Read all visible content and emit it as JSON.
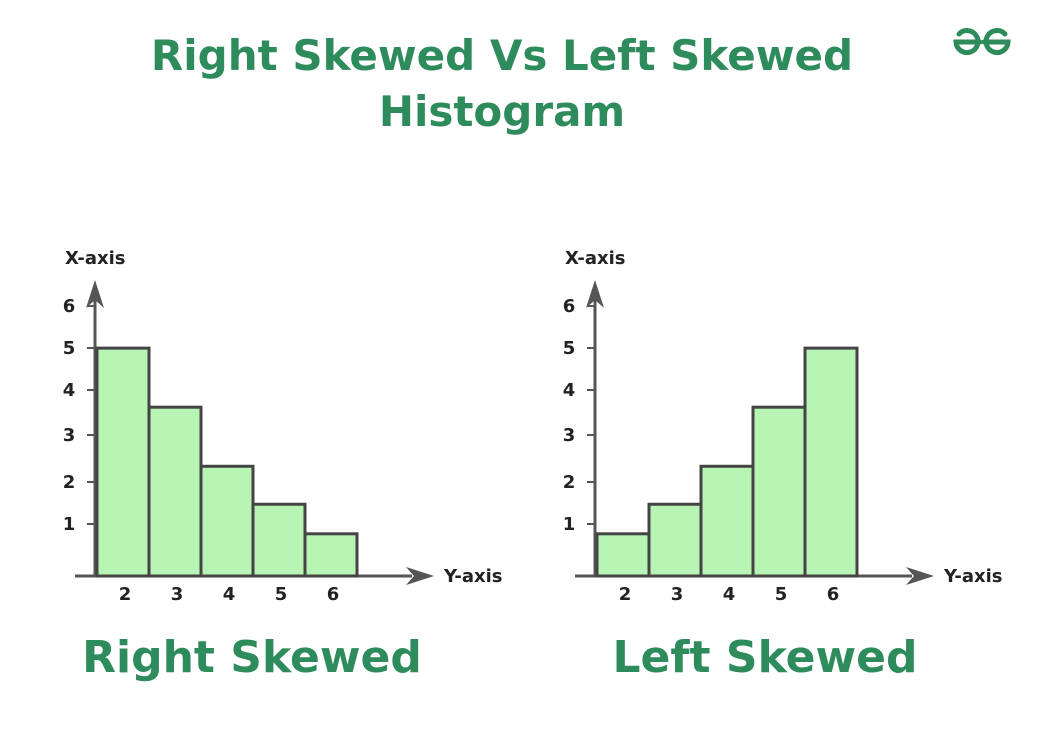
{
  "title": {
    "line1": "Right Skewed Vs Left Skewed",
    "line2": "Histogram"
  },
  "logo": {
    "icon": "gfg-logo-icon",
    "color": "#2e8b5c"
  },
  "colors": {
    "bar_fill": "#b8f5b4",
    "bar_stroke": "#444444",
    "axis": "#555555",
    "accent": "#2e8b5c"
  },
  "chart_data": [
    {
      "type": "bar",
      "title": "Right Skewed",
      "xlabel": "Y-axis",
      "ylabel": "X-axis",
      "categories": [
        "2",
        "3",
        "4",
        "5",
        "6"
      ],
      "values": [
        5.4,
        4.0,
        2.6,
        1.7,
        1.0
      ],
      "yticks": [
        "1",
        "2",
        "3",
        "4",
        "5",
        "6"
      ],
      "ylim": [
        0,
        6.8
      ]
    },
    {
      "type": "bar",
      "title": "Left Skewed",
      "xlabel": "Y-axis",
      "ylabel": "X-axis",
      "categories": [
        "2",
        "3",
        "4",
        "5",
        "6"
      ],
      "values": [
        1.0,
        1.7,
        2.6,
        4.0,
        5.4
      ],
      "yticks": [
        "1",
        "2",
        "3",
        "4",
        "5",
        "6"
      ],
      "ylim": [
        0,
        6.8
      ]
    }
  ]
}
